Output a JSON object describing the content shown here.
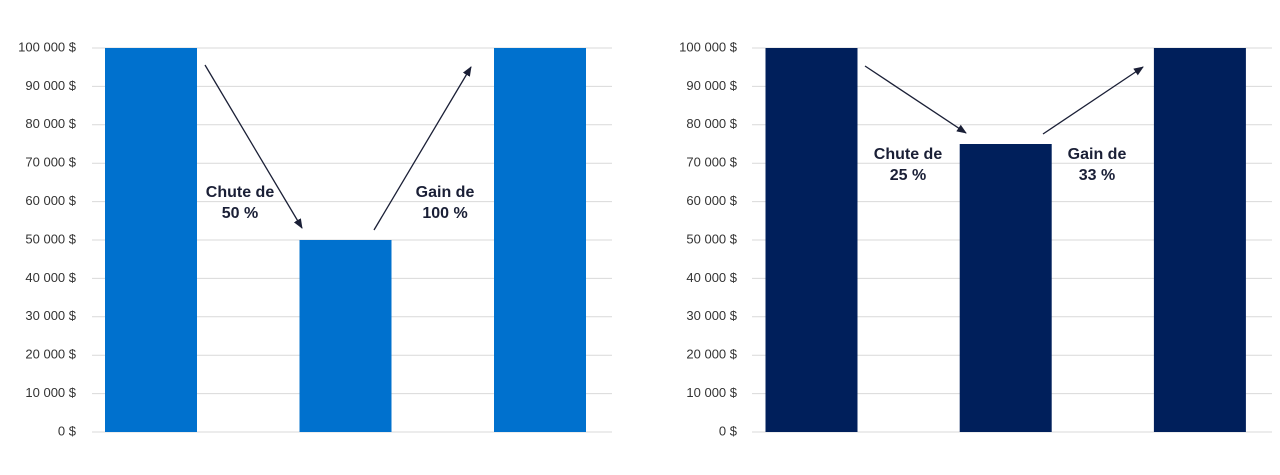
{
  "chart_data": [
    {
      "type": "bar",
      "categories": [
        null,
        null,
        null
      ],
      "values": [
        100000,
        50000,
        100000
      ],
      "color": "#0071ce",
      "ylim": [
        0,
        100000
      ],
      "yticks": [
        {
          "value": 0,
          "label": "0 $"
        },
        {
          "value": 10000,
          "label": "10 000 $"
        },
        {
          "value": 20000,
          "label": "20 000 $"
        },
        {
          "value": 30000,
          "label": "30 000 $"
        },
        {
          "value": 40000,
          "label": "40 000 $"
        },
        {
          "value": 50000,
          "label": "50 000 $"
        },
        {
          "value": 60000,
          "label": "60 000 $"
        },
        {
          "value": 70000,
          "label": "70 000 $"
        },
        {
          "value": 80000,
          "label": "80 000 $"
        },
        {
          "value": 90000,
          "label": "90 000 $"
        },
        {
          "value": 100000,
          "label": "100 000 $"
        }
      ],
      "grid": true,
      "annotations": [
        [
          "Chute de",
          "50 %"
        ],
        [
          "Gain de",
          "100 %"
        ]
      ]
    },
    {
      "type": "bar",
      "categories": [
        null,
        null,
        null
      ],
      "values": [
        100000,
        75000,
        100000
      ],
      "color": "#001f5b",
      "ylim": [
        0,
        100000
      ],
      "yticks": [
        {
          "value": 0,
          "label": "0 $"
        },
        {
          "value": 10000,
          "label": "10 000 $"
        },
        {
          "value": 20000,
          "label": "20 000 $"
        },
        {
          "value": 30000,
          "label": "30 000 $"
        },
        {
          "value": 40000,
          "label": "40 000 $"
        },
        {
          "value": 50000,
          "label": "50 000 $"
        },
        {
          "value": 60000,
          "label": "60 000 $"
        },
        {
          "value": 70000,
          "label": "70 000 $"
        },
        {
          "value": 80000,
          "label": "80 000 $"
        },
        {
          "value": 90000,
          "label": "90 000 $"
        },
        {
          "value": 100000,
          "label": "100 000 $"
        }
      ],
      "grid": true,
      "annotations": [
        [
          "Chute de",
          "25 %"
        ],
        [
          "Gain de",
          "33 %"
        ]
      ]
    }
  ]
}
